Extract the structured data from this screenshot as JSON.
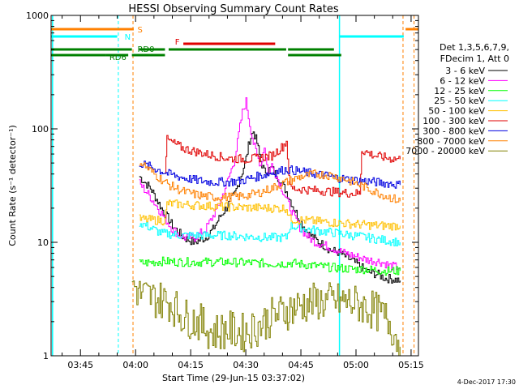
{
  "chart_data": {
    "type": "line",
    "title": "HESSI Observing Summary Count Rates",
    "xlabel": "Start Time (29-Jun-15 03:37:02)",
    "ylabel": "Count Rate (s⁻¹ detector⁻¹)",
    "ylog": true,
    "ylim": [
      1,
      1000
    ],
    "xlim_min": [
      0,
      100
    ],
    "x_ticks": [
      {
        "label": "03:45",
        "min": 8
      },
      {
        "label": "04:00",
        "min": 23
      },
      {
        "label": "04:15",
        "min": 38
      },
      {
        "label": "04:30",
        "min": 53
      },
      {
        "label": "04:45",
        "min": 68
      },
      {
        "label": "05:00",
        "min": 83
      },
      {
        "label": "05:15",
        "min": 98
      }
    ],
    "y_ticks": [
      {
        "label": "1",
        "value": 1
      },
      {
        "label": "10",
        "value": 10
      },
      {
        "label": "100",
        "value": 100
      },
      {
        "label": "1000",
        "value": 1000
      }
    ],
    "legend": {
      "header": [
        "Det 1,3,5,6,7,9,",
        "FDecim 1, Att 0"
      ],
      "placement": "right"
    },
    "flags": [
      {
        "label": "S",
        "color": "#ff8000",
        "segments": [
          [
            0,
            22.5
          ],
          [
            96.5,
            100
          ]
        ]
      },
      {
        "label": "N",
        "color": "#00ffff",
        "segments": [
          [
            0,
            18
          ],
          [
            78.5,
            96
          ]
        ]
      },
      {
        "label": "F",
        "color": "#e00000",
        "segments": [
          [
            36,
            61
          ]
        ]
      },
      {
        "label": "RD0",
        "color": "#008000",
        "segments": [
          [
            0,
            22
          ],
          [
            24,
            31
          ],
          [
            32,
            64
          ],
          [
            64.5,
            77
          ]
        ]
      },
      {
        "label": "RD6",
        "color": "#008000",
        "segments": [
          [
            0,
            15
          ],
          [
            15,
            21
          ],
          [
            22,
            31
          ],
          [
            64.5,
            79
          ]
        ]
      }
    ],
    "dashed_markers": [
      {
        "min": 18.3,
        "color": "#00ffff"
      },
      {
        "min": 22.3,
        "color": "#ff8000"
      },
      {
        "min": 95.8,
        "color": "#ff8000"
      },
      {
        "min": 98.8,
        "color": "#ff8000"
      }
    ],
    "solid_markers": [
      {
        "min": 0.4,
        "color": "#00ffff"
      },
      {
        "min": 78.5,
        "color": "#00ffff"
      }
    ],
    "series": [
      {
        "name": "3 - 6 keV",
        "color": "#000000",
        "x": [
          24,
          27,
          30,
          33,
          36,
          39,
          42,
          44,
          46,
          48,
          50,
          52,
          53,
          54,
          55,
          56,
          57,
          58,
          60,
          62,
          64,
          66,
          68,
          70,
          72,
          74,
          76,
          78,
          80,
          83,
          86,
          89,
          91,
          92,
          95
        ],
        "y": [
          38,
          30,
          20,
          14,
          11,
          10,
          11,
          13,
          17,
          21,
          27,
          42,
          55,
          80,
          95,
          75,
          52,
          42,
          45,
          36,
          28,
          20,
          15,
          12,
          10.5,
          9.5,
          8.5,
          8.2,
          7.5,
          6.5,
          5.5,
          5.2,
          4.8,
          4.8,
          4.6
        ]
      },
      {
        "name": "6 - 12 keV",
        "color": "#ff00ff",
        "x": [
          24,
          27,
          30,
          33,
          36,
          39,
          42,
          44,
          46,
          48,
          50,
          51,
          52,
          53,
          54,
          55,
          56,
          57,
          58,
          59,
          60,
          62,
          64,
          66,
          68,
          70,
          72,
          74,
          76,
          78,
          80,
          83,
          86,
          89,
          91,
          92,
          95
        ],
        "y": [
          33,
          25,
          18,
          13,
          11,
          11,
          13,
          17,
          23,
          35,
          55,
          90,
          140,
          175,
          110,
          75,
          58,
          48,
          70,
          40,
          48,
          34,
          24,
          17,
          13,
          11,
          10,
          9.5,
          9,
          8.5,
          8,
          7.5,
          7,
          6.8,
          6.5,
          6.2,
          6
        ]
      },
      {
        "name": "12 - 25 keV",
        "color": "#00ff00",
        "x": [
          24,
          30,
          36,
          42,
          48,
          54,
          60,
          64,
          65,
          70,
          76,
          82,
          86,
          90,
          95
        ],
        "y": [
          6.5,
          6.8,
          6.7,
          6.7,
          6.7,
          6.6,
          6.5,
          6.5,
          6.6,
          6.3,
          6.0,
          5.8,
          5.8,
          5.6,
          5.6
        ]
      },
      {
        "name": "25 - 50 keV",
        "color": "#00ffff",
        "x": [
          24,
          30,
          36,
          42,
          48,
          54,
          60,
          64,
          65,
          70,
          74,
          78,
          82,
          86,
          90,
          95
        ],
        "y": [
          15,
          12,
          11.5,
          11.5,
          11.5,
          11.2,
          11.0,
          11.0,
          14,
          13,
          12.5,
          12,
          11.5,
          11,
          10.5,
          10
        ]
      },
      {
        "name": "50 - 100 keV",
        "color": "#ffc000",
        "x": [
          24,
          31,
          31.5,
          36,
          42,
          48,
          54,
          60,
          64,
          65,
          70,
          76,
          82,
          86,
          90,
          95
        ],
        "y": [
          16,
          15.5,
          22,
          21.5,
          21,
          20.5,
          20.2,
          20,
          20,
          16,
          15.5,
          15,
          14.5,
          14.2,
          14,
          14
        ]
      },
      {
        "name": "100 - 300 keV",
        "color": "#e00000",
        "x": [
          31,
          31.5,
          36,
          42,
          48,
          54,
          60,
          63,
          64,
          65,
          70,
          76,
          82,
          84,
          84.5,
          88,
          92,
          95
        ],
        "y": [
          44,
          80,
          67,
          60,
          55,
          54,
          58,
          70,
          78,
          30,
          29,
          28,
          27,
          27,
          65,
          58,
          55,
          54
        ]
      },
      {
        "name": "300 - 800 keV",
        "color": "#0000e0",
        "x": [
          24,
          28,
          32,
          36,
          40,
          44,
          48,
          52,
          56,
          60,
          64,
          68,
          72,
          76,
          80,
          84,
          88,
          92,
          95
        ],
        "y": [
          50,
          45,
          40,
          37,
          35,
          34,
          34,
          35,
          38,
          41,
          44,
          42,
          40,
          38,
          36,
          35,
          34,
          33,
          32
        ]
      },
      {
        "name": "800 - 7000 keV",
        "color": "#ff8000",
        "x": [
          24,
          28,
          32,
          36,
          40,
          44,
          48,
          52,
          56,
          60,
          64,
          68,
          72,
          76,
          80,
          84,
          88,
          92,
          95
        ],
        "y": [
          52,
          40,
          32,
          28,
          26,
          25,
          25,
          25.5,
          27,
          30,
          34,
          38,
          40,
          39,
          36,
          32,
          28,
          25,
          23
        ]
      },
      {
        "name": "7000 - 20000 keV",
        "color": "#808000",
        "x": [
          22,
          24,
          28,
          32,
          36,
          40,
          44,
          48,
          52,
          56,
          60,
          64,
          68,
          72,
          76,
          80,
          84,
          88,
          92,
          95
        ],
        "y": [
          4.5,
          3.5,
          3.2,
          3.0,
          2.2,
          2.0,
          1.6,
          1.7,
          1.6,
          1.8,
          2.2,
          2.5,
          2.8,
          3.0,
          3.0,
          3.0,
          2.8,
          2.5,
          2.0,
          1.2
        ]
      }
    ]
  },
  "footer": {
    "date": "4-Dec-2017 17:30"
  }
}
